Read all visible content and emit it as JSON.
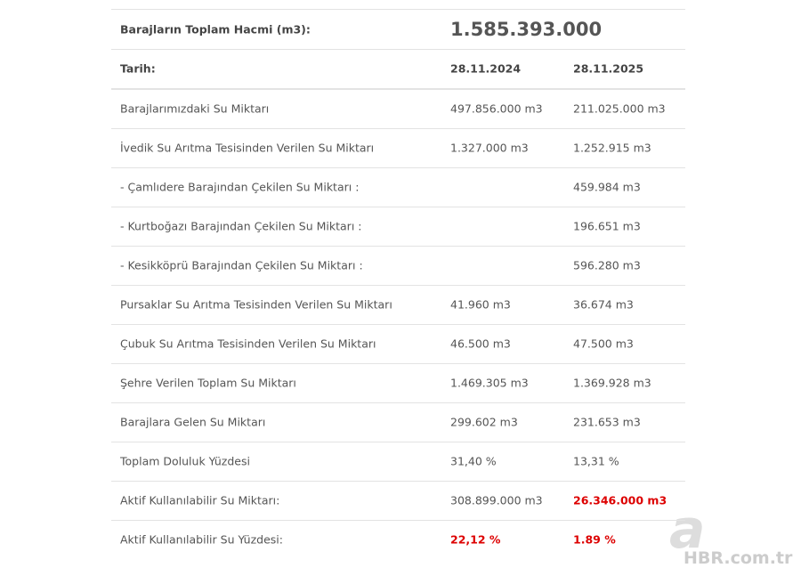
{
  "table": {
    "header": {
      "label": "Barajların Toplam Hacmi (m3):",
      "value": "1.585.393.000"
    },
    "columns": {
      "label": "Tarih:",
      "dates": [
        "28.11.2024",
        "28.11.2025"
      ]
    },
    "rows": [
      {
        "label": "Barajlarımızdaki Su Miktarı",
        "cells": [
          {
            "text": "497.856.000 m3"
          },
          {
            "text": "211.025.000 m3"
          }
        ]
      },
      {
        "label": "İvedik Su Arıtma Tesisinden Verilen Su Miktarı",
        "cells": [
          {
            "text": "1.327.000 m3"
          },
          {
            "text": "1.252.915 m3"
          }
        ]
      },
      {
        "label": "- Çamlıdere Barajından Çekilen Su Miktarı :",
        "cells": [
          null,
          {
            "text": "459.984 m3"
          }
        ]
      },
      {
        "label": "- Kurtboğazı Barajından Çekilen Su Miktarı :",
        "cells": [
          null,
          {
            "text": "196.651 m3"
          }
        ]
      },
      {
        "label": "- Kesikköprü Barajından Çekilen Su Miktarı :",
        "cells": [
          null,
          {
            "text": "596.280 m3"
          }
        ]
      },
      {
        "label": "Pursaklar Su Arıtma Tesisinden Verilen Su Miktarı",
        "cells": [
          {
            "text": "41.960 m3"
          },
          {
            "text": "36.674 m3"
          }
        ]
      },
      {
        "label": "Çubuk Su Arıtma Tesisinden Verilen Su Miktarı",
        "cells": [
          {
            "text": "46.500 m3"
          },
          {
            "text": "47.500 m3"
          }
        ]
      },
      {
        "label": "Şehre Verilen Toplam Su Miktarı",
        "cells": [
          {
            "text": "1.469.305 m3"
          },
          {
            "text": "1.369.928 m3"
          }
        ]
      },
      {
        "label": "Barajlara Gelen Su Miktarı",
        "cells": [
          {
            "text": "299.602 m3"
          },
          {
            "text": "231.653 m3"
          }
        ]
      },
      {
        "label": "Toplam Doluluk Yüzdesi",
        "cells": [
          {
            "text": "31,40 %"
          },
          {
            "text": "13,31 %"
          }
        ]
      },
      {
        "label": "Aktif Kullanılabilir Su Miktarı:",
        "cells": [
          {
            "text": "308.899.000 m3"
          },
          {
            "text": "26.346.000 m3",
            "emphasis": "red"
          }
        ]
      },
      {
        "label": "Aktif Kullanılabilir Su Yüzdesi:",
        "cells": [
          {
            "text": "22,12 %",
            "emphasis": "red"
          },
          {
            "text": "1.89 %",
            "emphasis": "red"
          }
        ]
      }
    ]
  },
  "watermark": {
    "logo": "a",
    "text": "HBR.com.tr"
  }
}
